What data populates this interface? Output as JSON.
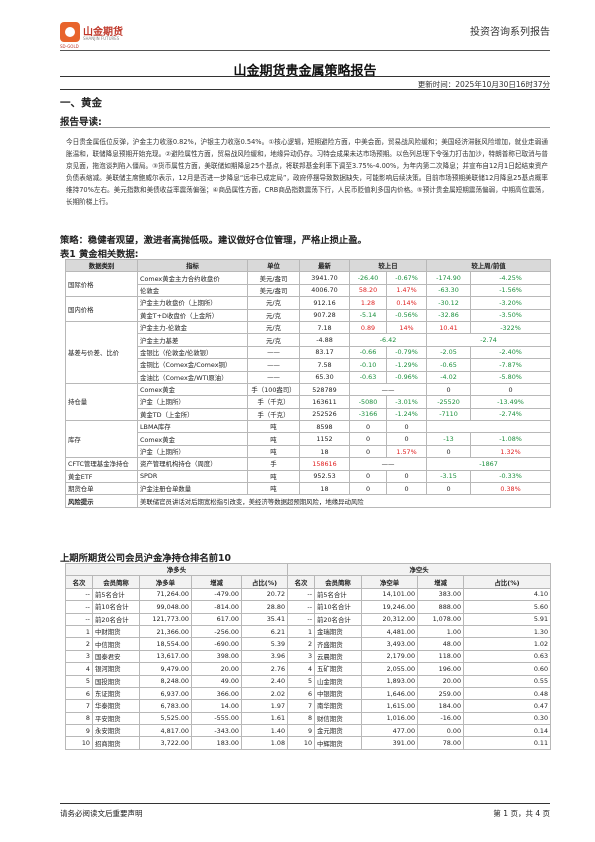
{
  "header": {
    "logo_cn": "山金期货",
    "logo_en": "SHANJIN FUTURES",
    "logo_sub": "SD-GOLD",
    "series": "投资咨询系列报告"
  },
  "title": "山金期货贵金属策略报告",
  "update_time": "更新时间：2025年10月30日16时37分",
  "section": "一、黄金",
  "lead_title": "报告导读:",
  "paragraph": "今日贵金属低位反弹，沪金主力收涨0.82%，沪银主力收涨0.54%。①核心逻辑，短期避险方面，中美会面，贸易战风险缓和；美国经济滞胀风险增加，就业走弱通胀温和，联储降息预期开始充现。②避险属性方面，贸易战风险缓和，地缘异动仍存。习特会成果未达市场预期。以色列总理下令强力打击加沙，特朗普称已取消与普京见面，拖泡谈判陷入僵局。③货币属性方面，美联储如期降息25个基点，将联邦基金利率下调至3.75%-4.00%，为年内第二次降息；并宣布自12月1日起结束资产负债表缩减。美联储主席鲍威尔表示，12月是否进一步降息“远非已成定局”，政府停摆导致数据缺失，可能影响后续决策。目前市场预期美联储12月降息25基点概率维持70%左右。美元指数和美债收益率震荡偏强；④商品属性方面，CRB商品指数震荡下行，人民币贬值利多国内价格。⑤预计贵金属短期震荡偏弱，中期高位震荡，长期阶梯上行。",
  "strategy": "策略：稳健者观望，激进者高抛低吸。建议做好仓位管理，严格止损止盈。",
  "table1": {
    "title": "表1 黄金相关数据:",
    "headers": [
      "数据类别",
      "指标",
      "单位",
      "最新",
      "较上日",
      "较上周/前值"
    ],
    "rows": [
      {
        "cat": "国际价格",
        "ind": "Comex黄金主力合约收盘价",
        "unit": "美元/盎司",
        "latest": "3941.70",
        "d1": "-26.40",
        "d2": "-0.67%",
        "w1": "-174.90",
        "w2": "-4.25%"
      },
      {
        "cat": "",
        "ind": "伦敦金",
        "unit": "美元/盎司",
        "latest": "4006.70",
        "d1": "58.20",
        "d2": "1.47%",
        "w1": "-63.30",
        "w2": "-1.56%"
      },
      {
        "cat": "国内价格",
        "ind": "沪金主力收盘价（上期所）",
        "unit": "元/克",
        "latest": "912.16",
        "d1": "1.28",
        "d2": "0.14%",
        "w1": "-30.12",
        "w2": "-3.20%"
      },
      {
        "cat": "",
        "ind": "黄金T+D收盘价（上金所）",
        "unit": "元/克",
        "latest": "907.28",
        "d1": "-5.14",
        "d2": "-0.56%",
        "w1": "-32.86",
        "w2": "-3.50%"
      },
      {
        "cat": "基差与价差、比价",
        "ind": "沪金主力-伦敦金",
        "unit": "元/克",
        "latest": "7.18",
        "d1": "0.89",
        "d2": "14%",
        "w1": "10.41",
        "w2": "-322%"
      },
      {
        "cat": "",
        "ind": "沪金主力基差",
        "unit": "元/克",
        "latest": "-4.88",
        "d1": "-6.42",
        "d2": "",
        "w1": "-2.74",
        "w2": ""
      },
      {
        "cat": "",
        "ind": "金银比（伦敦金/伦敦银）",
        "unit": "——",
        "latest": "83.17",
        "d1": "-0.66",
        "d2": "-0.79%",
        "w1": "-2.05",
        "w2": "-2.40%"
      },
      {
        "cat": "",
        "ind": "金铜比（Comex金/Comex铜）",
        "unit": "——",
        "latest": "7.58",
        "d1": "-0.10",
        "d2": "-1.29%",
        "w1": "-0.65",
        "w2": "-7.87%"
      },
      {
        "cat": "",
        "ind": "金油比（Comex金/WTI原油）",
        "unit": "——",
        "latest": "65.30",
        "d1": "-0.63",
        "d2": "-0.96%",
        "w1": "-4.02",
        "w2": "-5.80%"
      },
      {
        "cat": "持仓量",
        "ind": "Comex黄金",
        "unit": "手（100盎司）",
        "latest": "528789",
        "d1": "——",
        "d2": "",
        "w1": "0",
        "w2": "0"
      },
      {
        "cat": "",
        "ind": "沪金（上期所）",
        "unit": "手（千克）",
        "latest": "163611",
        "d1": "-5080",
        "d2": "-3.01%",
        "w1": "-25520",
        "w2": "-13.49%"
      },
      {
        "cat": "",
        "ind": "黄金TD（上金所）",
        "unit": "手（千克）",
        "latest": "252526",
        "d1": "-3166",
        "d2": "-1.24%",
        "w1": "-7110",
        "w2": "-2.74%"
      },
      {
        "cat": "库存",
        "ind": "LBMA库存",
        "unit": "吨",
        "latest": "8598",
        "d1": "0",
        "d2": "0",
        "w1": "",
        "w2": ""
      },
      {
        "cat": "",
        "ind": "Comex黄金",
        "unit": "吨",
        "latest": "1152",
        "d1": "0",
        "d2": "0",
        "w1": "-13",
        "w2": "-1.08%"
      },
      {
        "cat": "",
        "ind": "沪金（上期所）",
        "unit": "吨",
        "latest": "18",
        "d1": "0",
        "d2": "1.57%",
        "w1": "0",
        "w2": "1.32%"
      },
      {
        "cat": "CFTC管理基金净持仓",
        "ind": "资产管理机构持仓（周度）",
        "unit": "手",
        "latest": "158616",
        "d1": "——",
        "d2": "",
        "w1": "-1867",
        "w2": ""
      },
      {
        "cat": "黄金ETF",
        "ind": "SPDR",
        "unit": "吨",
        "latest": "952.53",
        "d1": "0",
        "d2": "0",
        "w1": "-3.15",
        "w2": "-0.33%"
      },
      {
        "cat": "期货仓单",
        "ind": "沪金注册仓单数量",
        "unit": "吨",
        "latest": "18",
        "d1": "0",
        "d2": "0",
        "w1": "0",
        "w2": "0.38%"
      }
    ],
    "risk_label": "风险提示",
    "risk_text": "美联储官员讲话对后期宽松指引改变，美经济等数据超预期风险，地缘异动风险"
  },
  "table2": {
    "title": "上期所期货公司会员沪金净持仓排名前10",
    "group_long": "净多头",
    "group_short": "净空头",
    "headers": [
      "名次",
      "会员简称",
      "净多单",
      "增减",
      "占比(%)",
      "名次",
      "会员简称",
      "净空单",
      "增减",
      "占比(%)"
    ],
    "rows": [
      [
        "--",
        "前5名合计",
        "71,264.00",
        "-479.00",
        "20.72",
        "--",
        "前5名合计",
        "14,101.00",
        "383.00",
        "4.10"
      ],
      [
        "--",
        "前10名合计",
        "99,048.00",
        "-814.00",
        "28.80",
        "--",
        "前10名合计",
        "19,246.00",
        "888.00",
        "5.60"
      ],
      [
        "--",
        "前20名合计",
        "121,773.00",
        "617.00",
        "35.41",
        "--",
        "前20名合计",
        "20,312.00",
        "1,078.00",
        "5.91"
      ],
      [
        "1",
        "中财期货",
        "21,366.00",
        "-256.00",
        "6.21",
        "1",
        "金瑞期货",
        "4,481.00",
        "1.00",
        "1.30"
      ],
      [
        "2",
        "中信期货",
        "18,554.00",
        "-690.00",
        "5.39",
        "2",
        "齐盛期货",
        "3,493.00",
        "48.00",
        "1.02"
      ],
      [
        "3",
        "国泰君安",
        "13,617.00",
        "398.00",
        "3.96",
        "3",
        "云晨期货",
        "2,179.00",
        "118.00",
        "0.63"
      ],
      [
        "4",
        "银河期货",
        "9,479.00",
        "20.00",
        "2.76",
        "4",
        "五矿期货",
        "2,055.00",
        "196.00",
        "0.60"
      ],
      [
        "5",
        "国投期货",
        "8,248.00",
        "49.00",
        "2.40",
        "5",
        "山金期货",
        "1,893.00",
        "20.00",
        "0.55"
      ],
      [
        "6",
        "东证期货",
        "6,937.00",
        "366.00",
        "2.02",
        "6",
        "中银期货",
        "1,646.00",
        "259.00",
        "0.48"
      ],
      [
        "7",
        "华泰期货",
        "6,783.00",
        "14.00",
        "1.97",
        "7",
        "南华期货",
        "1,615.00",
        "184.00",
        "0.47"
      ],
      [
        "8",
        "平安期货",
        "5,525.00",
        "-555.00",
        "1.61",
        "8",
        "财信期货",
        "1,016.00",
        "-16.00",
        "0.30"
      ],
      [
        "9",
        "永安期货",
        "4,817.00",
        "-343.00",
        "1.40",
        "9",
        "金元期货",
        "477.00",
        "0.00",
        "0.14"
      ],
      [
        "10",
        "招商期货",
        "3,722.00",
        "183.00",
        "1.08",
        "10",
        "中辉期货",
        "391.00",
        "78.00",
        "0.11"
      ]
    ]
  },
  "footer": {
    "left": "请务必阅读文后重要声明",
    "right": "第 1 页，共 4 页"
  },
  "colors": {
    "up": "#e02020",
    "down": "#1a8f3c",
    "brand": "#e8642c"
  }
}
